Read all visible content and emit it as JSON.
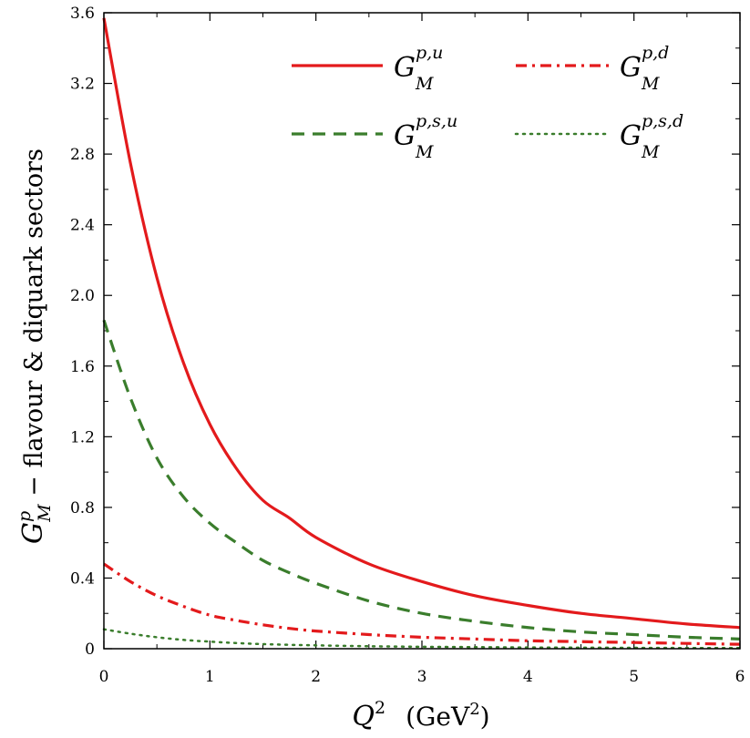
{
  "chart_data": {
    "type": "line",
    "xlabel": {
      "main": "Q",
      "sup": "2",
      "unit_open": "(GeV",
      "unit_sup": "2",
      "unit_close": ")"
    },
    "ylabel": {
      "main": "G",
      "sup": "p",
      "sub": "M",
      "rest": " − flavour & diquark sectors"
    },
    "xlim": [
      0,
      6
    ],
    "ylim": [
      0,
      3.6
    ],
    "xticks": [
      "0",
      "1",
      "2",
      "3",
      "4",
      "5",
      "6"
    ],
    "yticks": [
      "0",
      "0.4",
      "0.8",
      "1.2",
      "1.6",
      "2.0",
      "2.4",
      "2.8",
      "3.2",
      "3.6"
    ],
    "grid": false,
    "legend_position": "top-right",
    "x": [
      0,
      0.25,
      0.5,
      0.75,
      1,
      1.25,
      1.5,
      1.75,
      2,
      2.5,
      3,
      3.5,
      4,
      4.5,
      5,
      5.5,
      6
    ],
    "series": [
      {
        "base": "G",
        "sup": "p,u",
        "sub": "M",
        "color": "#e31a1c",
        "dash": "solid",
        "values": [
          3.57,
          2.75,
          2.1,
          1.62,
          1.27,
          1.02,
          0.84,
          0.74,
          0.63,
          0.48,
          0.38,
          0.3,
          0.245,
          0.2,
          0.17,
          0.14,
          0.12
        ]
      },
      {
        "base": "G",
        "sup": "p,d",
        "sub": "M",
        "color": "#e31a1c",
        "dash": "dashdot",
        "values": [
          0.48,
          0.38,
          0.3,
          0.24,
          0.19,
          0.16,
          0.135,
          0.115,
          0.1,
          0.08,
          0.065,
          0.055,
          0.045,
          0.04,
          0.035,
          0.03,
          0.025
        ]
      },
      {
        "base": "G",
        "sup": "p,s,u",
        "sub": "M",
        "color": "#3a7d2c",
        "dash": "dashed",
        "values": [
          1.86,
          1.42,
          1.08,
          0.86,
          0.71,
          0.6,
          0.5,
          0.43,
          0.37,
          0.27,
          0.2,
          0.155,
          0.12,
          0.095,
          0.08,
          0.065,
          0.055
        ]
      },
      {
        "base": "G",
        "sup": "p,s,d",
        "sub": "M",
        "color": "#3a7d2c",
        "dash": "dotted",
        "values": [
          0.11,
          0.085,
          0.065,
          0.05,
          0.04,
          0.032,
          0.026,
          0.022,
          0.019,
          0.014,
          0.011,
          0.009,
          0.007,
          0.006,
          0.005,
          0.004,
          0.004
        ]
      }
    ]
  }
}
